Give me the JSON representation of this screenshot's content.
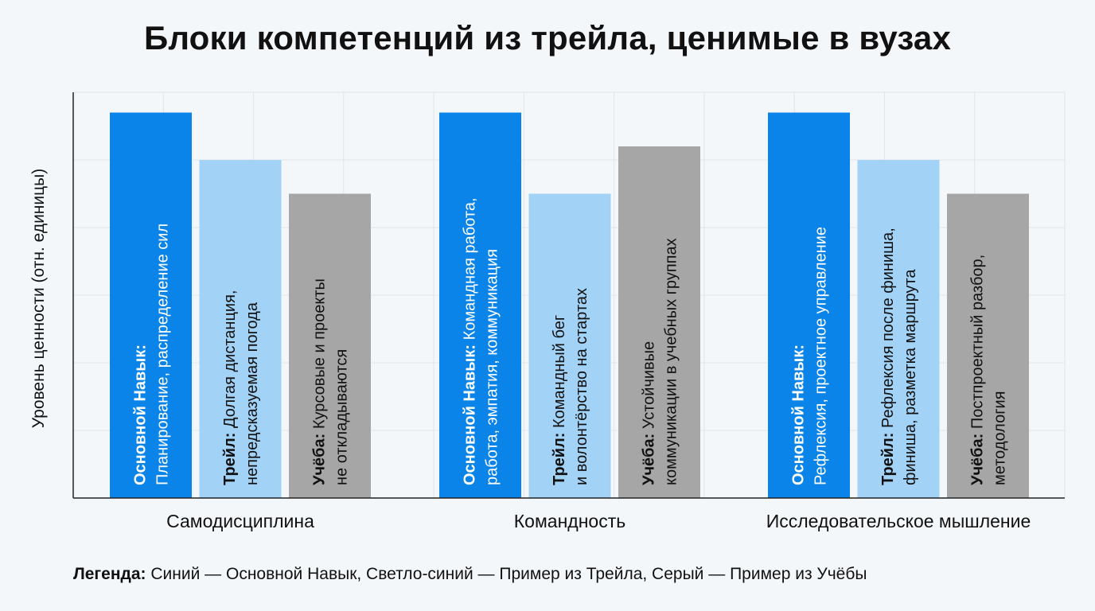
{
  "chart_data": {
    "type": "bar",
    "title": "Блоки компетенций из трейла, ценимые в вузах",
    "ylabel": "Уровень ценности (отн. единицы)",
    "xlabel": "",
    "ylim": [
      0,
      6
    ],
    "grid": true,
    "categories": [
      "Самодисциплина",
      "Командность",
      "Исследовательское мышление"
    ],
    "series": [
      {
        "name": "Основной Навык",
        "color": "#0a84e8",
        "values": [
          5.7,
          5.7,
          5.7
        ],
        "labels": [
          {
            "bold": "Основной Навык:",
            "lines": [
              "Основной Навык: ",
              "Планирование, распределение сил"
            ]
          },
          {
            "bold": "Основной Навык:",
            "lines": [
              "Основной Навык: Командная работа,",
              "работа, эмпатия, коммуникация"
            ]
          },
          {
            "bold": "Основной Навык:",
            "lines": [
              "Основной Навык:",
              "Рефлексия, проектное управление"
            ]
          }
        ]
      },
      {
        "name": "Пример из Трейла",
        "color": "#a3d2f7",
        "values": [
          5.0,
          4.5,
          5.0
        ],
        "labels": [
          {
            "bold": "Трейл:",
            "lines": [
              "Трейл: Долгая дистанция,",
              "непредсказуемая погода"
            ]
          },
          {
            "bold": "Трейл:",
            "lines": [
              "Трейл: Командный бег",
              "и волонтёрство на стартах"
            ]
          },
          {
            "bold": "Трейл:",
            "lines": [
              "Трейл: Рефлексия после финиша,",
              "финиша, разметка маршрута"
            ]
          }
        ]
      },
      {
        "name": "Пример из Учёбы",
        "color": "#a6a6a6",
        "values": [
          4.5,
          5.2,
          4.5
        ],
        "labels": [
          {
            "bold": "Учёба:",
            "lines": [
              "Учёба: Курсовые и проекты",
              "не откладываются"
            ]
          },
          {
            "bold": "Учёба:",
            "lines": [
              "Учёба: Устойчивые",
              "коммуникации в учебных группах"
            ]
          },
          {
            "bold": "Учёба:",
            "lines": [
              "Учёба: Постпроектный разбор,",
              "методология"
            ]
          }
        ]
      }
    ]
  },
  "legend": {
    "bold": "Легенда:",
    "text": " Синий — Основной Навык, Светло-синий — Пример из Трейла, Серый — Пример из Учёбы"
  }
}
